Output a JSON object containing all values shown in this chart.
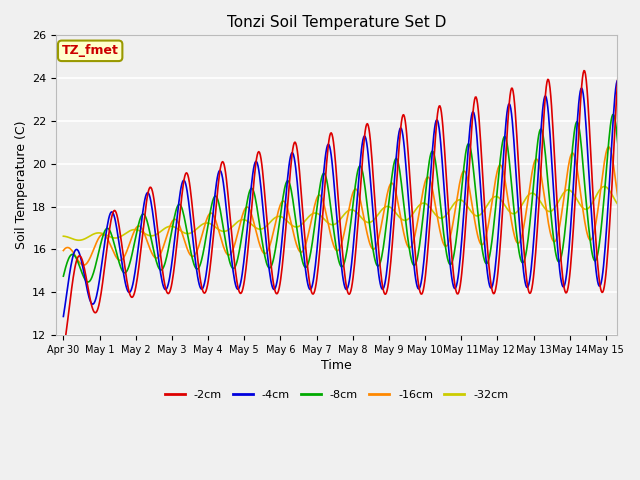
{
  "title": "Tonzi Soil Temperature Set D",
  "xlabel": "Time",
  "ylabel": "Soil Temperature (C)",
  "ylim": [
    12,
    26
  ],
  "background_color": "#f0f0f0",
  "plot_bg_color": "#f0f0f0",
  "annotation_text": "TZ_fmet",
  "annotation_bg": "#ffffcc",
  "annotation_border": "#999900",
  "legend_labels": [
    "-2cm",
    "-4cm",
    "-8cm",
    "-16cm",
    "-32cm"
  ],
  "legend_colors": [
    "#dd0000",
    "#0000dd",
    "#00aa00",
    "#ff8800",
    "#cccc00"
  ],
  "series_colors": [
    "#dd0000",
    "#0000dd",
    "#00aa00",
    "#ff8800",
    "#cccc00"
  ],
  "tick_labels": [
    "Apr 30",
    "May 1",
    "May 2",
    "May 3",
    "May 4",
    "May 5",
    "May 6",
    "May 7",
    "May 8",
    "May 9",
    "May 10",
    "May 11",
    "May 12",
    "May 13",
    "May 14",
    "May 15"
  ],
  "yticks": [
    12,
    14,
    16,
    18,
    20,
    22,
    24,
    26
  ],
  "figwidth": 6.4,
  "figheight": 4.8,
  "dpi": 100
}
